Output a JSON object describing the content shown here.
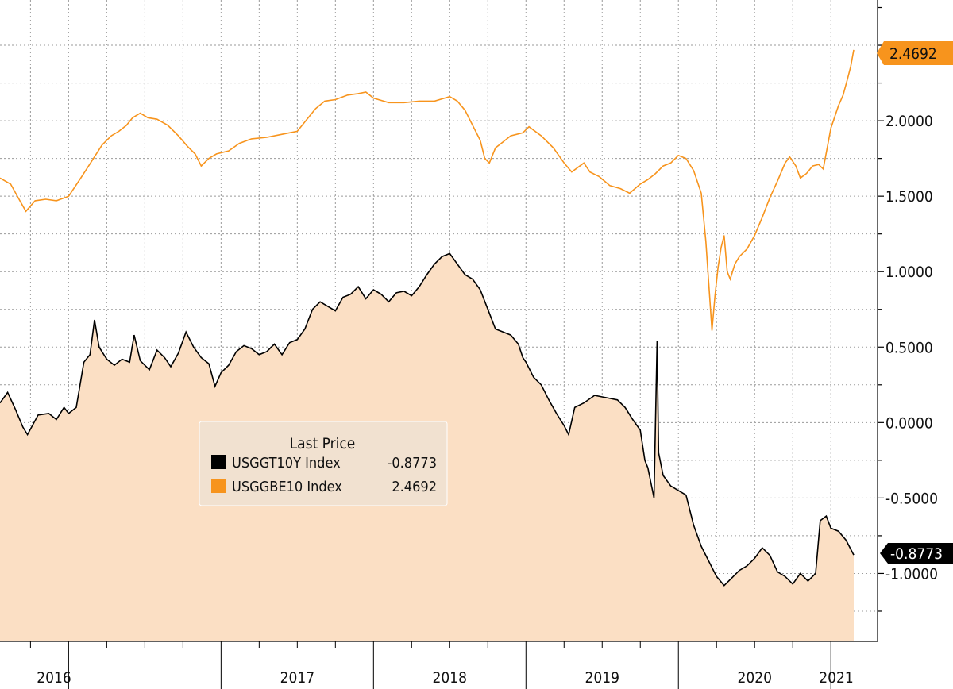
{
  "chart_data": {
    "type": "line",
    "title": "",
    "xlabel": "",
    "ylabel": "",
    "x_range": [
      2015.55,
      2021.15
    ],
    "y_range": [
      -1.45,
      2.8
    ],
    "y_ticks": [
      -1.0,
      -0.5,
      0.0,
      0.5,
      1.0,
      1.5,
      2.0
    ],
    "y_tick_labels": [
      "-1.0000",
      "-0.5000",
      "0.0000",
      "0.5000",
      "1.0000",
      "1.5000",
      "2.0000"
    ],
    "x_tick_labels": [
      "2016",
      "2017",
      "2018",
      "2019",
      "2020",
      "2021"
    ],
    "grid": true,
    "legend": {
      "title": "Last Price",
      "position": "center-left",
      "entries": [
        {
          "name": "USGGT10Y Index",
          "value": "-0.8773"
        },
        {
          "name": "USGGBE10 Index",
          "value": "2.4692"
        }
      ]
    },
    "last_values": {
      "USGGBE10": "2.4692",
      "USGGT10Y": "-0.8773"
    },
    "series": [
      {
        "name": "USGGBE10 Index",
        "color": "#f7941d",
        "style": "line",
        "points": [
          [
            2015.55,
            1.62
          ],
          [
            2015.62,
            1.58
          ],
          [
            2015.68,
            1.47
          ],
          [
            2015.72,
            1.4
          ],
          [
            2015.78,
            1.47
          ],
          [
            2015.85,
            1.48
          ],
          [
            2015.92,
            1.47
          ],
          [
            2016.0,
            1.5
          ],
          [
            2016.08,
            1.62
          ],
          [
            2016.15,
            1.73
          ],
          [
            2016.22,
            1.84
          ],
          [
            2016.28,
            1.9
          ],
          [
            2016.33,
            1.93
          ],
          [
            2016.38,
            1.97
          ],
          [
            2016.42,
            2.02
          ],
          [
            2016.47,
            2.05
          ],
          [
            2016.52,
            2.02
          ],
          [
            2016.58,
            2.01
          ],
          [
            2016.65,
            1.97
          ],
          [
            2016.72,
            1.9
          ],
          [
            2016.78,
            1.83
          ],
          [
            2016.83,
            1.78
          ],
          [
            2016.87,
            1.7
          ],
          [
            2016.92,
            1.75
          ],
          [
            2016.97,
            1.78
          ],
          [
            2017.05,
            1.8
          ],
          [
            2017.12,
            1.85
          ],
          [
            2017.2,
            1.88
          ],
          [
            2017.3,
            1.89
          ],
          [
            2017.4,
            1.91
          ],
          [
            2017.5,
            1.93
          ],
          [
            2017.58,
            2.03
          ],
          [
            2017.62,
            2.08
          ],
          [
            2017.68,
            2.13
          ],
          [
            2017.75,
            2.14
          ],
          [
            2017.83,
            2.17
          ],
          [
            2017.9,
            2.18
          ],
          [
            2017.95,
            2.19
          ],
          [
            2018.0,
            2.15
          ],
          [
            2018.1,
            2.12
          ],
          [
            2018.2,
            2.12
          ],
          [
            2018.3,
            2.13
          ],
          [
            2018.4,
            2.13
          ],
          [
            2018.5,
            2.16
          ],
          [
            2018.55,
            2.13
          ],
          [
            2018.6,
            2.07
          ],
          [
            2018.65,
            1.97
          ],
          [
            2018.7,
            1.87
          ],
          [
            2018.73,
            1.75
          ],
          [
            2018.76,
            1.72
          ],
          [
            2018.8,
            1.82
          ],
          [
            2018.85,
            1.86
          ],
          [
            2018.9,
            1.9
          ],
          [
            2018.98,
            1.92
          ],
          [
            2019.02,
            1.96
          ],
          [
            2019.1,
            1.9
          ],
          [
            2019.18,
            1.82
          ],
          [
            2019.25,
            1.72
          ],
          [
            2019.3,
            1.66
          ],
          [
            2019.38,
            1.72
          ],
          [
            2019.42,
            1.66
          ],
          [
            2019.48,
            1.63
          ],
          [
            2019.55,
            1.57
          ],
          [
            2019.62,
            1.55
          ],
          [
            2019.68,
            1.52
          ],
          [
            2019.75,
            1.58
          ],
          [
            2019.8,
            1.61
          ],
          [
            2019.85,
            1.65
          ],
          [
            2019.9,
            1.7
          ],
          [
            2019.95,
            1.72
          ],
          [
            2020.0,
            1.77
          ],
          [
            2020.05,
            1.75
          ],
          [
            2020.1,
            1.67
          ],
          [
            2020.15,
            1.52
          ],
          [
            2020.18,
            1.2
          ],
          [
            2020.2,
            0.91
          ],
          [
            2020.22,
            0.61
          ],
          [
            2020.24,
            0.84
          ],
          [
            2020.26,
            1.03
          ],
          [
            2020.28,
            1.16
          ],
          [
            2020.3,
            1.24
          ],
          [
            2020.32,
            1.0
          ],
          [
            2020.34,
            0.95
          ],
          [
            2020.37,
            1.05
          ],
          [
            2020.4,
            1.1
          ],
          [
            2020.45,
            1.15
          ],
          [
            2020.5,
            1.24
          ],
          [
            2020.55,
            1.36
          ],
          [
            2020.6,
            1.49
          ],
          [
            2020.65,
            1.6
          ],
          [
            2020.7,
            1.72
          ],
          [
            2020.73,
            1.76
          ],
          [
            2020.77,
            1.7
          ],
          [
            2020.8,
            1.62
          ],
          [
            2020.84,
            1.65
          ],
          [
            2020.88,
            1.7
          ],
          [
            2020.92,
            1.71
          ],
          [
            2020.95,
            1.68
          ],
          [
            2021.0,
            1.95
          ],
          [
            2021.05,
            2.1
          ],
          [
            2021.08,
            2.17
          ],
          [
            2021.11,
            2.28
          ],
          [
            2021.13,
            2.36
          ],
          [
            2021.15,
            2.4692
          ]
        ]
      },
      {
        "name": "USGGT10Y Index",
        "color": "#000000",
        "fill": "#fbdfc4",
        "style": "area",
        "points": [
          [
            2015.55,
            0.13
          ],
          [
            2015.6,
            0.2
          ],
          [
            2015.65,
            0.09
          ],
          [
            2015.7,
            -0.03
          ],
          [
            2015.73,
            -0.08
          ],
          [
            2015.8,
            0.05
          ],
          [
            2015.87,
            0.06
          ],
          [
            2015.92,
            0.02
          ],
          [
            2015.97,
            0.1
          ],
          [
            2016.0,
            0.06
          ],
          [
            2016.05,
            0.1
          ],
          [
            2016.1,
            0.4
          ],
          [
            2016.14,
            0.45
          ],
          [
            2016.17,
            0.68
          ],
          [
            2016.2,
            0.5
          ],
          [
            2016.25,
            0.42
          ],
          [
            2016.3,
            0.38
          ],
          [
            2016.35,
            0.42
          ],
          [
            2016.4,
            0.4
          ],
          [
            2016.43,
            0.58
          ],
          [
            2016.47,
            0.41
          ],
          [
            2016.53,
            0.35
          ],
          [
            2016.58,
            0.48
          ],
          [
            2016.63,
            0.43
          ],
          [
            2016.67,
            0.37
          ],
          [
            2016.72,
            0.46
          ],
          [
            2016.77,
            0.6
          ],
          [
            2016.82,
            0.5
          ],
          [
            2016.87,
            0.43
          ],
          [
            2016.92,
            0.39
          ],
          [
            2016.96,
            0.24
          ],
          [
            2017.0,
            0.33
          ],
          [
            2017.05,
            0.38
          ],
          [
            2017.1,
            0.47
          ],
          [
            2017.15,
            0.51
          ],
          [
            2017.2,
            0.49
          ],
          [
            2017.25,
            0.45
          ],
          [
            2017.3,
            0.47
          ],
          [
            2017.35,
            0.52
          ],
          [
            2017.4,
            0.45
          ],
          [
            2017.45,
            0.53
          ],
          [
            2017.5,
            0.55
          ],
          [
            2017.55,
            0.62
          ],
          [
            2017.6,
            0.75
          ],
          [
            2017.65,
            0.8
          ],
          [
            2017.7,
            0.77
          ],
          [
            2017.75,
            0.74
          ],
          [
            2017.8,
            0.83
          ],
          [
            2017.85,
            0.85
          ],
          [
            2017.9,
            0.9
          ],
          [
            2017.95,
            0.82
          ],
          [
            2018.0,
            0.88
          ],
          [
            2018.05,
            0.85
          ],
          [
            2018.1,
            0.8
          ],
          [
            2018.15,
            0.86
          ],
          [
            2018.2,
            0.87
          ],
          [
            2018.25,
            0.84
          ],
          [
            2018.3,
            0.9
          ],
          [
            2018.35,
            0.98
          ],
          [
            2018.4,
            1.05
          ],
          [
            2018.45,
            1.1
          ],
          [
            2018.5,
            1.12
          ],
          [
            2018.55,
            1.05
          ],
          [
            2018.6,
            0.98
          ],
          [
            2018.65,
            0.95
          ],
          [
            2018.7,
            0.88
          ],
          [
            2018.75,
            0.75
          ],
          [
            2018.8,
            0.62
          ],
          [
            2018.85,
            0.6
          ],
          [
            2018.9,
            0.58
          ],
          [
            2018.95,
            0.52
          ],
          [
            2018.98,
            0.43
          ],
          [
            2019.0,
            0.4
          ],
          [
            2019.05,
            0.3
          ],
          [
            2019.1,
            0.25
          ],
          [
            2019.15,
            0.15
          ],
          [
            2019.2,
            0.06
          ],
          [
            2019.25,
            -0.02
          ],
          [
            2019.28,
            -0.08
          ],
          [
            2019.32,
            0.1
          ],
          [
            2019.38,
            0.13
          ],
          [
            2019.45,
            0.18
          ],
          [
            2019.5,
            0.17
          ],
          [
            2019.55,
            0.16
          ],
          [
            2019.6,
            0.15
          ],
          [
            2019.65,
            0.1
          ],
          [
            2019.7,
            0.02
          ],
          [
            2019.75,
            -0.05
          ],
          [
            2019.78,
            -0.25
          ],
          [
            2019.8,
            -0.3
          ],
          [
            2019.83,
            -0.45
          ],
          [
            2019.84,
            -0.5
          ],
          [
            2019.86,
            0.54
          ],
          [
            2019.87,
            -0.2
          ],
          [
            2019.9,
            -0.35
          ],
          [
            2019.95,
            -0.42
          ],
          [
            2020.0,
            -0.45
          ],
          [
            2020.05,
            -0.48
          ],
          [
            2020.1,
            -0.68
          ],
          [
            2020.15,
            -0.82
          ],
          [
            2020.2,
            -0.92
          ],
          [
            2020.25,
            -1.02
          ],
          [
            2020.3,
            -1.08
          ],
          [
            2020.35,
            -1.03
          ],
          [
            2020.4,
            -0.98
          ],
          [
            2020.45,
            -0.95
          ],
          [
            2020.5,
            -0.9
          ],
          [
            2020.55,
            -0.83
          ],
          [
            2020.6,
            -0.88
          ],
          [
            2020.65,
            -0.99
          ],
          [
            2020.7,
            -1.02
          ],
          [
            2020.75,
            -1.07
          ],
          [
            2020.8,
            -1.0
          ],
          [
            2020.85,
            -1.05
          ],
          [
            2020.9,
            -1.0
          ],
          [
            2020.93,
            -0.65
          ],
          [
            2020.97,
            -0.62
          ],
          [
            2021.0,
            -0.7
          ],
          [
            2021.05,
            -0.72
          ],
          [
            2021.1,
            -0.78
          ],
          [
            2021.15,
            -0.8773
          ]
        ]
      }
    ]
  },
  "price_labels": {
    "orange": {
      "text": "2.4692",
      "bg": "#f7941d",
      "fg": "#111111"
    },
    "black": {
      "text": "-0.8773",
      "bg": "#000000",
      "fg": "#ffffff"
    }
  },
  "style": {
    "grid_color": "#9a9a9a",
    "area_fill": "#fbdfc4",
    "legend_bg": "#f1e1d0"
  }
}
